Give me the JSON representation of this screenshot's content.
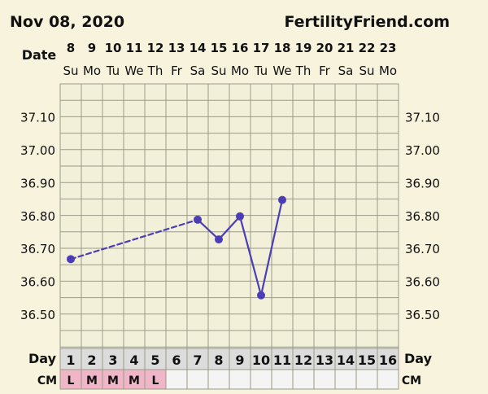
{
  "header": {
    "date_title": "Nov 08, 2020",
    "site_name": "FertilityFriend.com"
  },
  "chart_data": {
    "type": "line",
    "date_row_label": "Date",
    "date_numbers": [
      "8",
      "9",
      "10",
      "11",
      "12",
      "13",
      "14",
      "15",
      "16",
      "17",
      "18",
      "19",
      "20",
      "21",
      "22",
      "23"
    ],
    "weekdays": [
      "Su",
      "Mo",
      "Tu",
      "We",
      "Th",
      "Fr",
      "Sa",
      "Su",
      "Mo",
      "Tu",
      "We",
      "Th",
      "Fr",
      "Sa",
      "Su",
      "Mo"
    ],
    "day_row_label": "Day",
    "cycle_days": [
      "1",
      "2",
      "3",
      "4",
      "5",
      "6",
      "7",
      "8",
      "9",
      "10",
      "11",
      "12",
      "13",
      "14",
      "15",
      "16"
    ],
    "cm_row_label": "CM",
    "cm_values": [
      "L",
      "M",
      "M",
      "M",
      "L",
      "",
      "",
      "",
      "",
      "",
      "",
      "",
      "",
      "",
      "",
      ""
    ],
    "y_ticks": [
      "37.10",
      "37.00",
      "36.90",
      "36.80",
      "36.70",
      "36.60",
      "36.50"
    ],
    "ylim": [
      36.42,
      37.2
    ],
    "series": [
      {
        "points": [
          {
            "day": 1,
            "temp": 36.67
          },
          {
            "day": 7,
            "temp": 36.79
          },
          {
            "day": 8,
            "temp": 36.73
          },
          {
            "day": 9,
            "temp": 36.8
          },
          {
            "day": 10,
            "temp": 36.56
          },
          {
            "day": 11,
            "temp": 36.85
          }
        ],
        "dashed_segments": [
          [
            1,
            7
          ]
        ]
      }
    ],
    "colors": {
      "page_background": "#f7f3dc",
      "plot_background": "#f2f0d8",
      "grid": "#9a9a8c",
      "line": "#4b3db5",
      "cm_fill": "#efb6c8",
      "label_band": "#dcdcdc"
    }
  }
}
